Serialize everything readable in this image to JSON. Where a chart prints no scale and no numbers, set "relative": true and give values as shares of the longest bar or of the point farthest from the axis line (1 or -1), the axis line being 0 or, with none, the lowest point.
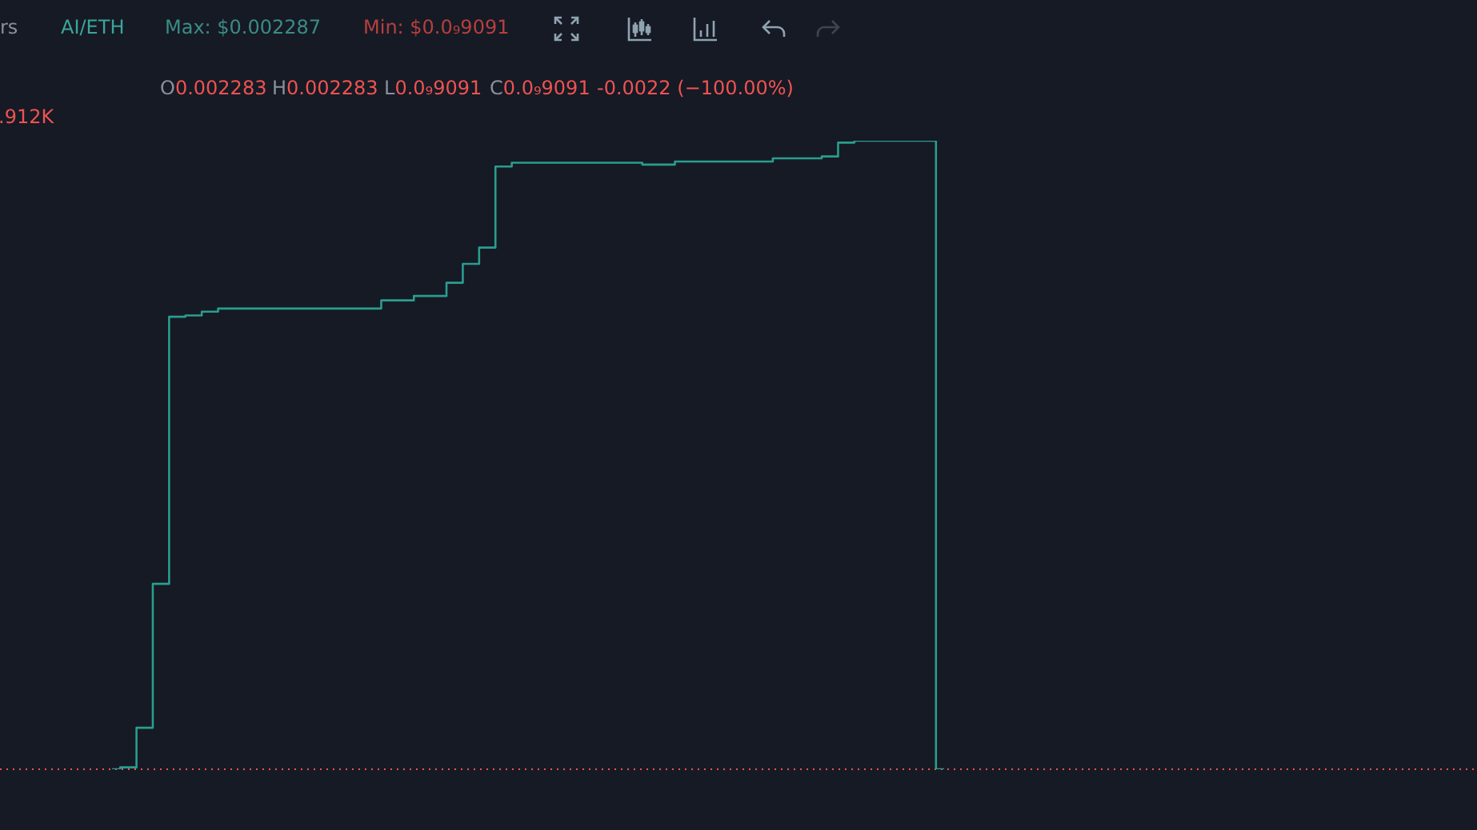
{
  "chart_data": {
    "type": "step",
    "relative": true,
    "annotations": [
      "rs",
      "AI/ETH",
      "Max: $0.002287",
      "Min: $0.0₉9091",
      "O0.002283",
      "H0.002283",
      "L0.0₉9091",
      "C0.0₉9091",
      "-0.0022 (−100.00%)",
      ".912K"
    ],
    "categories": [
      null,
      null,
      null,
      null,
      null,
      null,
      null,
      null,
      null,
      null,
      null,
      null,
      null,
      null,
      null,
      null,
      null,
      null,
      null,
      null,
      null,
      null,
      null,
      null,
      null,
      null,
      null,
      null,
      null,
      null,
      null,
      null,
      null,
      null,
      null,
      null,
      null,
      null,
      null,
      null,
      null,
      null,
      null,
      null,
      null,
      null,
      null,
      null,
      null,
      null,
      null,
      null
    ],
    "series": [
      {
        "color": "#2a9d8f",
        "values": [
          0,
          0.003,
          0.066,
          0.295,
          0.72,
          0.722,
          0.728,
          0.733,
          0.733,
          0.733,
          0.733,
          0.733,
          0.733,
          0.733,
          0.733,
          0.733,
          0.733,
          0.746,
          0.746,
          0.753,
          0.753,
          0.774,
          0.804,
          0.83,
          0.959,
          0.965,
          0.965,
          0.965,
          0.965,
          0.965,
          0.965,
          0.965,
          0.965,
          0.962,
          0.962,
          0.967,
          0.967,
          0.967,
          0.967,
          0.967,
          0.967,
          0.972,
          0.972,
          0.972,
          0.975,
          0.997,
          1,
          1,
          1,
          1,
          1,
          0
        ]
      }
    ],
    "legend": false,
    "ref_lines": [
      {
        "axis": "y",
        "value": 0,
        "color": "#ef5350",
        "line_style": "dotted"
      }
    ]
  }
}
